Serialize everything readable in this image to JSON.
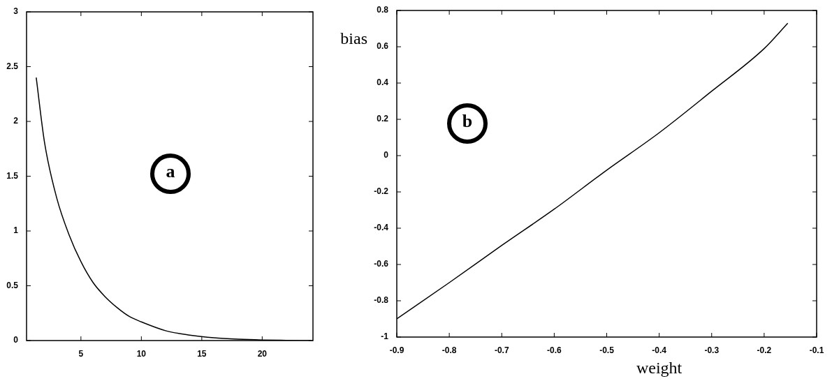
{
  "chart_data": [
    {
      "type": "line",
      "x": [
        1.3,
        2,
        3,
        4,
        5,
        6,
        7,
        8,
        9,
        10,
        12,
        14,
        16,
        18,
        20,
        22,
        24
      ],
      "values": [
        2.4,
        1.8,
        1.3,
        0.97,
        0.72,
        0.53,
        0.4,
        0.3,
        0.22,
        0.17,
        0.09,
        0.05,
        0.025,
        0.012,
        0.005,
        0.002,
        0
      ],
      "color": "#000000",
      "xlim": [
        0.5,
        24.2
      ],
      "xticks": [
        5,
        10,
        15,
        20
      ],
      "ylim": [
        0,
        3
      ],
      "yticks": [
        0,
        0.5,
        1,
        1.5,
        2,
        2.5,
        3
      ],
      "annotations": [
        "a"
      ]
    },
    {
      "type": "line",
      "x": [
        -0.9,
        -0.8,
        -0.7,
        -0.6,
        -0.5,
        -0.4,
        -0.3,
        -0.2,
        -0.155
      ],
      "values": [
        -0.9,
        -0.7,
        -0.495,
        -0.295,
        -0.08,
        0.126,
        0.355,
        0.59,
        0.73
      ],
      "color": "#000000",
      "xlim": [
        -0.9,
        -0.1
      ],
      "xticks": [
        -0.9,
        -0.8,
        -0.7,
        -0.6,
        -0.5,
        -0.4,
        -0.3,
        -0.2,
        -0.1
      ],
      "ylim": [
        -1,
        0.8
      ],
      "yticks": [
        -1,
        -0.8,
        -0.6,
        -0.4,
        -0.2,
        0,
        0.2,
        0.4,
        0.6,
        0.8
      ],
      "xlabel": "weight",
      "ylabel": "bias",
      "annotations": [
        "b"
      ]
    }
  ]
}
